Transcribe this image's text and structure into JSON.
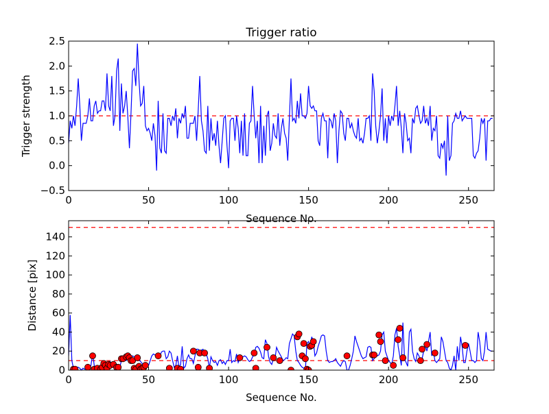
{
  "chart_data": [
    {
      "type": "line",
      "title": "Trigger ratio",
      "xlabel": "Sequence No.",
      "ylabel": "Trigger strength",
      "xlim": [
        0,
        266
      ],
      "ylim": [
        -0.5,
        2.5
      ],
      "xticks": [
        0,
        50,
        100,
        150,
        200,
        250
      ],
      "yticks": [
        -0.5,
        0.0,
        0.5,
        1.0,
        1.5,
        2.0,
        2.5
      ],
      "ytick_labels": [
        "−0.5",
        "0.0",
        "0.5",
        "1.0",
        "1.5",
        "2.0",
        "2.5"
      ],
      "threshold": 1.0,
      "colors": {
        "series": "#0000ff",
        "threshold": "#ff0000"
      },
      "values": [
        0.45,
        0.9,
        0.75,
        1.0,
        0.8,
        1.2,
        1.75,
        1.2,
        0.5,
        0.85,
        0.85,
        0.85,
        1.0,
        1.35,
        0.9,
        0.9,
        1.2,
        1.3,
        1.05,
        1.1,
        1.1,
        1.3,
        1.3,
        1.1,
        1.85,
        1.2,
        1.1,
        1.8,
        0.8,
        1.0,
        1.9,
        2.15,
        0.7,
        1.65,
        1.05,
        1.2,
        1.5,
        1.0,
        0.35,
        1.05,
        1.9,
        1.95,
        1.6,
        2.45,
        1.7,
        1.2,
        1.25,
        1.6,
        0.8,
        0.7,
        0.75,
        0.65,
        0.5,
        0.85,
        0.6,
        -0.1,
        1.3,
        0.35,
        0.25,
        1.05,
        0.3,
        0.25,
        0.95,
        0.95,
        0.8,
        1.0,
        0.9,
        1.15,
        0.55,
        0.95,
        0.85,
        1.05,
        0.95,
        1.2,
        0.55,
        0.55,
        0.85,
        0.85,
        0.85,
        1.0,
        0.5,
        1.1,
        1.8,
        0.9,
        0.7,
        0.3,
        0.25,
        1.2,
        0.3,
        0.95,
        0.5,
        0.65,
        0.4,
        0.9,
        0.4,
        0.05,
        0.5,
        0.95,
        1.0,
        0.4,
        -0.05,
        0.9,
        0.95,
        0.95,
        0.5,
        1.0,
        0.75,
        0.25,
        0.9,
        0.2,
        1.05,
        0.2,
        0.2,
        0.85,
        0.9,
        1.6,
        1.0,
        0.55,
        0.9,
        0.05,
        1.2,
        0.05,
        0.8,
        0.2,
        1.0,
        1.1,
        0.3,
        0.45,
        0.85,
        0.6,
        0.55,
        1.05,
        0.4,
        0.75,
        0.95,
        0.65,
        0.55,
        0.1,
        0.95,
        1.75,
        0.9,
        0.95,
        0.85,
        1.3,
        0.95,
        1.45,
        1.0,
        1.0,
        0.95,
        1.05,
        1.6,
        1.2,
        1.15,
        1.2,
        1.1,
        1.1,
        0.5,
        0.4,
        0.95,
        1.05,
        0.9,
        0.9,
        0.15,
        0.95,
        0.9,
        0.75,
        1.05,
        0.9,
        0.05,
        0.7,
        1.1,
        1.05,
        0.65,
        0.5,
        0.95,
        0.95,
        0.75,
        0.85,
        0.7,
        0.6,
        0.55,
        0.95,
        0.5,
        0.55,
        0.45,
        0.65,
        0.95,
        0.95,
        1.0,
        0.5,
        1.85,
        1.5,
        0.8,
        0.45,
        0.7,
        1.0,
        1.55,
        0.5,
        0.95,
        0.45,
        1.0,
        0.8,
        1.0,
        0.9,
        1.2,
        1.6,
        0.8,
        1.1,
        0.75,
        0.25,
        1.05,
        0.85,
        0.5,
        0.55,
        0.25,
        0.95,
        0.85,
        1.15,
        1.2,
        1.0,
        0.85,
        0.9,
        1.2,
        0.85,
        0.95,
        0.8,
        1.2,
        0.5,
        0.75,
        0.7,
        1.0,
        0.2,
        0.15,
        0.45,
        0.35,
        0.5,
        -0.2,
        1.0,
        0.1,
        0.2,
        0.85,
        0.9,
        1.05,
        0.95,
        0.95,
        1.1,
        0.9,
        0.95,
        1.0,
        0.95,
        0.95,
        0.95,
        0.95,
        0.2,
        0.15,
        0.25,
        0.3,
        0.55,
        0.95,
        0.85,
        0.95,
        0.1,
        0.9,
        0.9,
        0.95,
        0.95
      ]
    },
    {
      "type": "line",
      "title": "",
      "xlabel": "Sequence No.",
      "ylabel": "Distance [pix]",
      "xlim": [
        0,
        266
      ],
      "ylim": [
        0,
        157
      ],
      "xticks": [
        0,
        50,
        100,
        150,
        200,
        250
      ],
      "yticks": [
        0,
        20,
        40,
        60,
        80,
        100,
        120,
        140
      ],
      "thresholds": [
        10,
        150
      ],
      "colors": {
        "series": "#0000ff",
        "threshold": "#ff0000",
        "markers": "#ff0000"
      },
      "values": [
        15,
        58,
        10,
        2,
        1,
        3,
        3,
        2,
        0,
        2,
        1,
        2,
        1,
        1,
        5,
        18,
        5,
        1,
        3,
        2,
        3,
        5,
        2,
        1,
        2,
        7,
        9,
        4,
        4,
        3,
        2,
        3,
        3,
        10,
        13,
        12,
        10,
        13,
        12,
        14,
        15,
        14,
        13,
        12,
        11,
        9,
        7,
        5,
        3,
        4,
        5,
        10,
        15,
        17,
        16,
        14,
        12,
        14,
        19,
        20,
        20,
        12,
        14,
        20,
        18,
        10,
        3,
        5,
        15,
        3,
        6,
        25,
        2,
        4,
        12,
        16,
        12,
        12,
        7,
        15,
        22,
        22,
        20,
        21,
        22,
        16,
        17,
        12,
        2,
        14,
        10,
        8,
        9,
        5,
        10,
        11,
        7,
        9,
        6,
        10,
        10,
        22,
        8,
        10,
        9,
        17,
        8,
        12,
        13,
        14,
        15,
        14,
        11,
        9,
        10,
        14,
        16,
        24,
        25,
        23,
        19,
        13,
        12,
        32,
        28,
        14,
        8,
        6,
        12,
        12,
        24,
        20,
        17,
        14,
        10,
        11,
        13,
        12,
        28,
        33,
        38,
        36,
        20,
        10,
        8,
        5,
        3,
        2,
        0,
        28,
        30,
        26,
        35,
        30,
        15,
        18,
        25,
        30,
        36,
        37,
        36,
        20,
        10,
        8,
        9,
        9,
        10,
        12,
        8,
        6,
        4,
        8,
        10,
        9,
        0,
        0,
        5,
        12,
        20,
        36,
        30,
        25,
        20,
        15,
        12,
        13,
        14,
        24,
        25,
        24,
        10,
        12,
        14,
        15,
        16,
        20,
        37,
        40,
        20,
        15,
        10,
        8,
        6,
        15,
        37,
        44,
        25,
        15,
        5,
        50,
        12,
        8,
        4,
        40,
        43,
        20,
        12,
        9,
        18,
        15,
        10,
        12,
        20,
        26,
        20,
        30,
        40,
        15,
        20,
        10,
        8,
        10,
        12,
        35,
        30,
        20,
        10,
        8,
        2,
        0,
        5,
        15,
        0,
        25,
        10,
        35,
        25,
        8,
        8,
        20,
        28,
        20,
        10,
        10,
        8,
        10,
        40,
        30,
        12,
        10,
        20,
        40,
        22,
        21,
        20,
        20
      ],
      "markers": [
        [
          3,
          1
        ],
        [
          4,
          1
        ],
        [
          12,
          3
        ],
        [
          15,
          15
        ],
        [
          16,
          1
        ],
        [
          18,
          2
        ],
        [
          20,
          1
        ],
        [
          21,
          3
        ],
        [
          22,
          7
        ],
        [
          23,
          5
        ],
        [
          24,
          2
        ],
        [
          25,
          6
        ],
        [
          26,
          5
        ],
        [
          28,
          6
        ],
        [
          30,
          3
        ],
        [
          31,
          3
        ],
        [
          33,
          12
        ],
        [
          34,
          12
        ],
        [
          36,
          14
        ],
        [
          37,
          15
        ],
        [
          38,
          13
        ],
        [
          39,
          10
        ],
        [
          40,
          10
        ],
        [
          41,
          2
        ],
        [
          42,
          1
        ],
        [
          43,
          13
        ],
        [
          44,
          4
        ],
        [
          45,
          1
        ],
        [
          46,
          2
        ],
        [
          47,
          3
        ],
        [
          48,
          5
        ],
        [
          56,
          15
        ],
        [
          63,
          2
        ],
        [
          68,
          2
        ],
        [
          70,
          1
        ],
        [
          78,
          20
        ],
        [
          81,
          3
        ],
        [
          82,
          18
        ],
        [
          85,
          18
        ],
        [
          88,
          2
        ],
        [
          107,
          13
        ],
        [
          116,
          18
        ],
        [
          117,
          2
        ],
        [
          124,
          24
        ],
        [
          128,
          13
        ],
        [
          132,
          10
        ],
        [
          139,
          0
        ],
        [
          143,
          35
        ],
        [
          144,
          38
        ],
        [
          146,
          15
        ],
        [
          147,
          28
        ],
        [
          148,
          12
        ],
        [
          149,
          1
        ],
        [
          150,
          0
        ],
        [
          151,
          25
        ],
        [
          152,
          26
        ],
        [
          153,
          30
        ],
        [
          174,
          15
        ],
        [
          190,
          16
        ],
        [
          191,
          16
        ],
        [
          194,
          37
        ],
        [
          195,
          30
        ],
        [
          198,
          10
        ],
        [
          203,
          5
        ],
        [
          206,
          32
        ],
        [
          207,
          44
        ],
        [
          209,
          13
        ],
        [
          220,
          10
        ],
        [
          221,
          22
        ],
        [
          224,
          27
        ],
        [
          229,
          18
        ],
        [
          248,
          26
        ]
      ]
    }
  ]
}
